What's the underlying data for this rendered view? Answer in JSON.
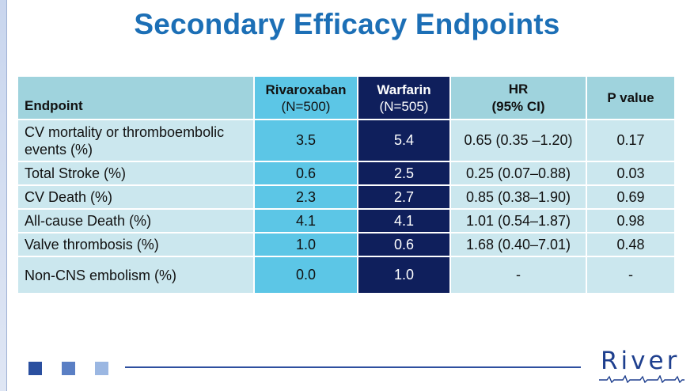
{
  "slide": {
    "title": "Secondary Efficacy Endpoints"
  },
  "table": {
    "headers": {
      "endpoint": "Endpoint",
      "rivaroxaban": "Rivaroxaban",
      "rivaroxaban_n": "(N=500)",
      "warfarin": "Warfarin",
      "warfarin_n": "(N=505)",
      "hr": "HR",
      "hr_ci": "(95% CI)",
      "p_value": "P value"
    },
    "rows": [
      {
        "endpoint_line1": "CV mortality or thromboembolic",
        "endpoint_line2": "events (%)",
        "rivaroxaban": "3.5",
        "warfarin": "5.4",
        "hr": "0.65 (0.35 –1.20)",
        "p": "0.17"
      },
      {
        "endpoint": "Total Stroke (%)",
        "rivaroxaban": "0.6",
        "warfarin": "2.5",
        "hr": "0.25 (0.07–0.88)",
        "p": "0.03"
      },
      {
        "endpoint": "CV Death (%)",
        "rivaroxaban": "2.3",
        "warfarin": "2.7",
        "hr": "0.85 (0.38–1.90)",
        "p": "0.69"
      },
      {
        "endpoint": "All-cause Death (%)",
        "rivaroxaban": "4.1",
        "warfarin": "4.1",
        "hr": "1.01 (0.54–1.87)",
        "p": "0.98"
      },
      {
        "endpoint": "Valve thrombosis (%)",
        "rivaroxaban": "1.0",
        "warfarin": "0.6",
        "hr": "1.68 (0.40–7.01)",
        "p": "0.48"
      },
      {
        "endpoint": "Non-CNS embolism (%)",
        "rivaroxaban": "0.0",
        "warfarin": "1.0",
        "hr": "-",
        "p": "-"
      }
    ]
  },
  "footer": {
    "logo_text": "River",
    "colors": {
      "square_1": "#2a4f9f",
      "square_2": "#5a7fc4",
      "square_3": "#9bb7e2",
      "line": "#2e4f9f"
    }
  }
}
